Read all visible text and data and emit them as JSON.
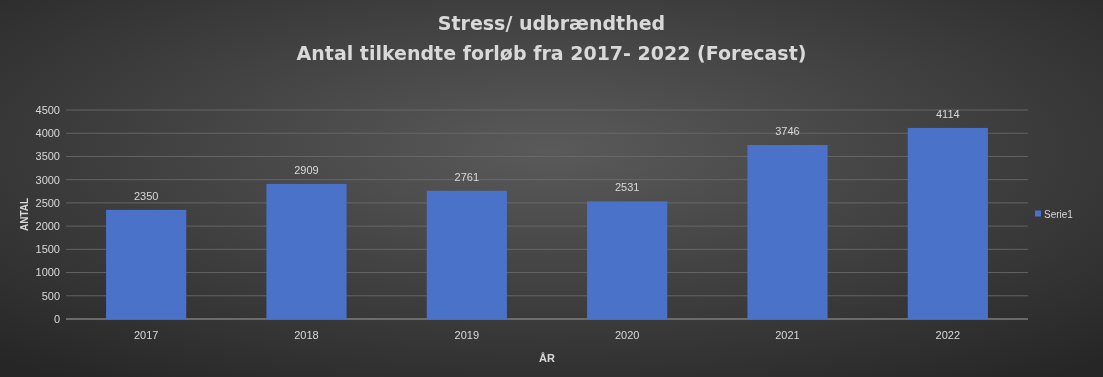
{
  "chart_data": {
    "type": "bar",
    "title": "Stress/ udbrændthed",
    "subtitle": "Antal tilkendte forløb fra 2017- 2022 (Forecast)",
    "xlabel": "ÅR",
    "ylabel": "ANTAL",
    "categories": [
      "2017",
      "2018",
      "2019",
      "2020",
      "2021",
      "2022"
    ],
    "series": [
      {
        "name": "Serie1",
        "color": "#4a72c8",
        "values": [
          2350,
          2909,
          2761,
          2531,
          3746,
          4114
        ]
      }
    ],
    "ylim": [
      0,
      4500
    ],
    "yticks": [
      0,
      500,
      1000,
      1500,
      2000,
      2500,
      3000,
      3500,
      4000,
      4500
    ],
    "grid": "y",
    "legend": "right",
    "data_labels": true
  }
}
